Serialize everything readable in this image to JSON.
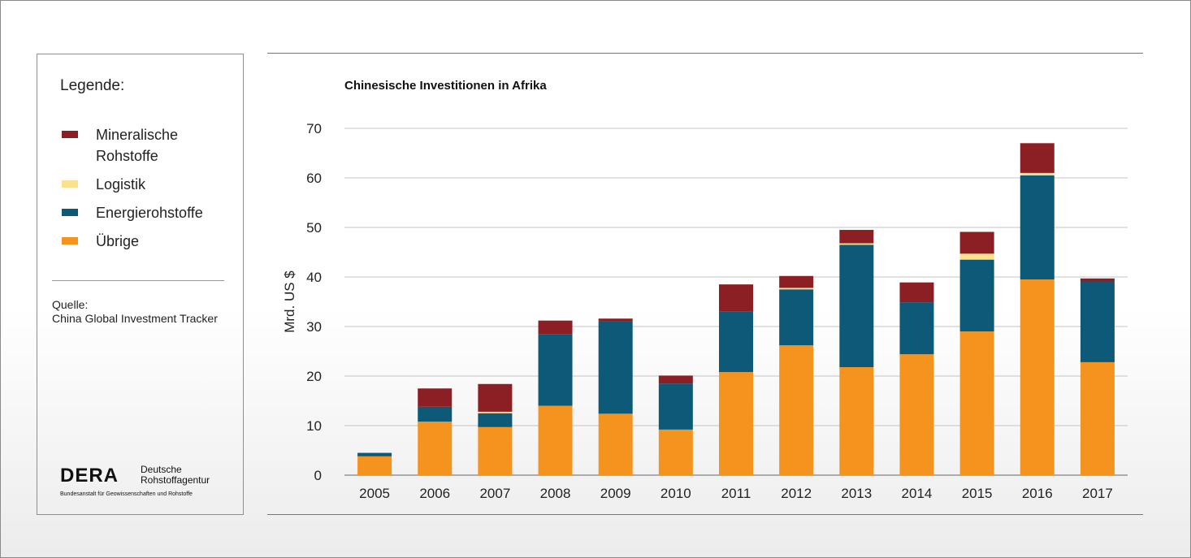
{
  "legend": {
    "title": "Legende:",
    "items": [
      {
        "label": "Mineralische Rohstoffe",
        "color": "#8b1f24"
      },
      {
        "label": "Logistik",
        "color": "#fbe08d"
      },
      {
        "label": "Energierohstoffe",
        "color": "#0d5a78"
      },
      {
        "label": "Übrige",
        "color": "#f5931f"
      }
    ]
  },
  "source": {
    "label": "Quelle:",
    "text": "China Global Investment Tracker"
  },
  "logo": {
    "mark": "DERA",
    "name_line1": "Deutsche",
    "name_line2": "Rohstoffagentur",
    "subtitle": "Bundesanstalt für Geowissenschaften und Rohstoffe"
  },
  "chart_data": {
    "type": "bar",
    "stacked": true,
    "title": "Chinesische Investitionen in Afrika",
    "xlabel": "",
    "ylabel": "Mrd. US $",
    "ylim": [
      0,
      70
    ],
    "yticks": [
      0,
      10,
      20,
      30,
      40,
      50,
      60,
      70
    ],
    "grid": true,
    "legend_position": "left",
    "categories": [
      "2005",
      "2006",
      "2007",
      "2008",
      "2009",
      "2010",
      "2011",
      "2012",
      "2013",
      "2014",
      "2015",
      "2016",
      "2017"
    ],
    "series": [
      {
        "name": "Übrige",
        "color": "#f5931f",
        "values": [
          3.8,
          10.8,
          9.7,
          14.0,
          12.4,
          9.2,
          20.8,
          26.2,
          21.8,
          24.4,
          29.0,
          39.5,
          22.8
        ]
      },
      {
        "name": "Energierohstoffe",
        "color": "#0d5a78",
        "values": [
          0.7,
          3.0,
          2.8,
          14.5,
          18.6,
          9.3,
          12.2,
          11.3,
          24.7,
          10.5,
          14.5,
          21.0,
          16.3
        ]
      },
      {
        "name": "Logistik",
        "color": "#fbe08d",
        "values": [
          0,
          0,
          0.3,
          0,
          0,
          0,
          0,
          0.3,
          0.3,
          0,
          1.2,
          0.5,
          0
        ]
      },
      {
        "name": "Mineralische Rohstoffe",
        "color": "#8b1f24",
        "values": [
          0,
          3.7,
          5.6,
          2.7,
          0.6,
          1.6,
          5.5,
          2.4,
          2.7,
          4.0,
          4.4,
          6.0,
          0.6
        ]
      }
    ]
  }
}
